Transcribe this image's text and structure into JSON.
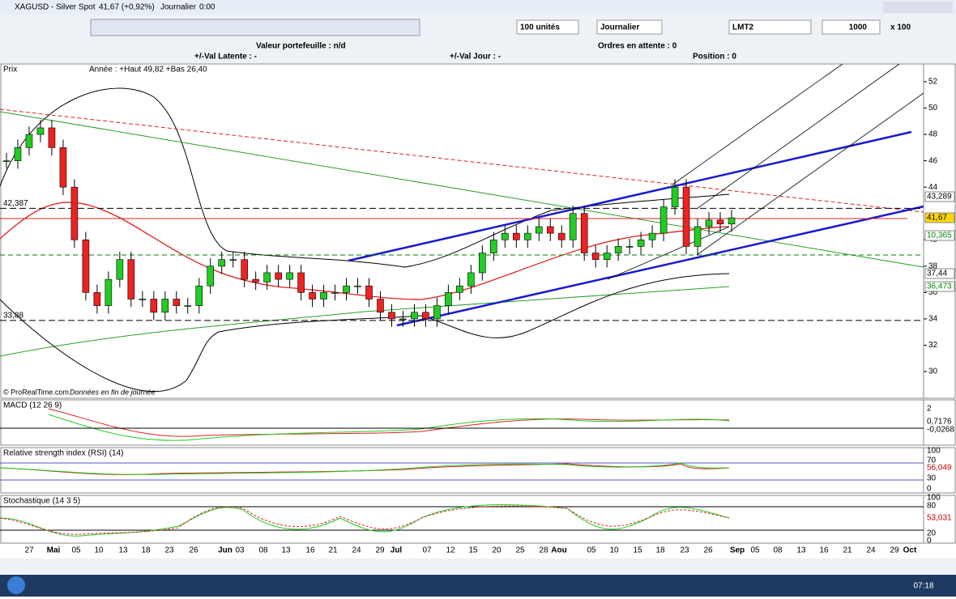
{
  "window": {
    "title": "XAGUSD - Silver Spot",
    "quote": "41,67 (+0,92%)",
    "period": "Journalier",
    "time": "0:00"
  },
  "toolbar": {
    "quantity": "100 unités",
    "period": "Journalier",
    "order_type": "LMT2",
    "amount": "1000",
    "multiplier": "x 100"
  },
  "info": {
    "portfolio": "Valeur portefeuille : n/d",
    "pending": "Ordres en attente : 0",
    "latent": "+/-Val Latente : -",
    "day": "+/-Val Jour : -",
    "position": "Position : 0"
  },
  "price_panel": {
    "label": "Prix",
    "range": "Année : +Haut 49,82 +Bas 26,40",
    "credit": "© ProRealTime.com",
    "note": "Données en fin de journée",
    "yticks": [
      52,
      50,
      48,
      46,
      44,
      40,
      38,
      36,
      34,
      32,
      30
    ],
    "levels": [
      {
        "value": 42.387,
        "label": "42,387"
      },
      {
        "value": 33.88,
        "label": "33,88"
      }
    ],
    "markers": [
      "43,289",
      "41,67",
      "10,365",
      "37,44",
      "36,473"
    ],
    "closes": [
      46,
      47,
      48,
      48.5,
      47,
      44,
      40,
      36,
      35,
      37,
      38.5,
      35.5,
      35.5,
      34.5,
      35.5,
      35,
      35,
      36.5,
      38,
      38.5,
      38.5,
      37,
      36.8,
      37.5,
      37,
      37.5,
      36,
      35.5,
      36,
      36,
      36.5,
      36.5,
      35.5,
      34.5,
      34,
      34,
      34.5,
      34,
      35,
      36,
      36.5,
      37.5,
      39,
      40,
      40.5,
      40,
      40.5,
      41,
      40.5,
      40,
      42,
      39,
      38.5,
      39,
      39.5,
      39.5,
      40,
      40.5,
      42.5,
      44,
      39.5,
      41,
      41.5,
      41.2,
      41.67
    ]
  },
  "macd_panel": {
    "label": "MACD (12 26 9)",
    "ticks": [
      "2",
      "0,7176",
      "-0,0268"
    ]
  },
  "rsi_panel": {
    "label": "Relative strength index (RSI) (14)",
    "ticks": [
      "100",
      "70",
      "56,049",
      "30",
      "0"
    ]
  },
  "stoch_panel": {
    "label": "Stochastique (14 3 5)",
    "ticks": [
      "100",
      "80",
      "53,031",
      "20",
      "0"
    ]
  },
  "date_axis": [
    "27",
    "Mai",
    "05",
    "10",
    "13",
    "18",
    "23",
    "26",
    "Jun",
    "03",
    "08",
    "13",
    "16",
    "21",
    "24",
    "29",
    "Jul",
    "07",
    "12",
    "15",
    "20",
    "25",
    "28",
    "Aou",
    "05",
    "10",
    "15",
    "18",
    "23",
    "26",
    "Sep",
    "05",
    "08",
    "13",
    "16",
    "21",
    "24",
    "29",
    "Oct"
  ],
  "taskbar": {
    "clock": "07:18"
  }
}
